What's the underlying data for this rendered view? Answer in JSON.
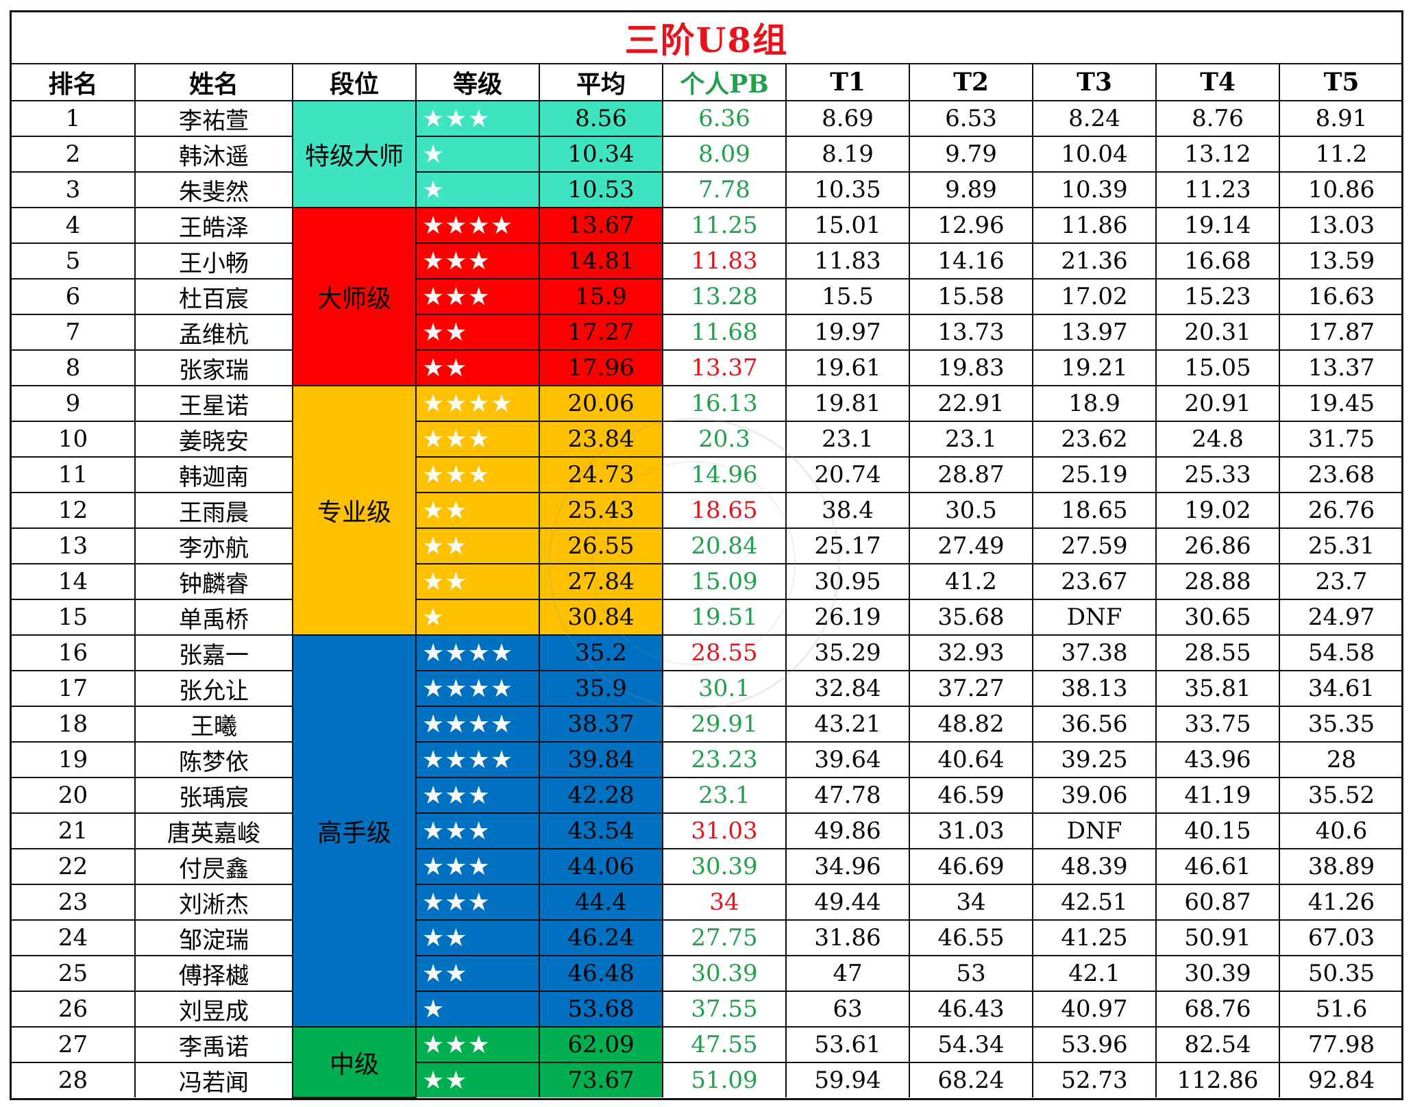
{
  "title": "三阶U8组",
  "headers": [
    "排名",
    "姓名",
    "段位",
    "等级",
    "平均",
    "个人PB",
    "T1",
    "T2",
    "T3",
    "T4",
    "T5"
  ],
  "tier_colors": {
    "特级大师": "#3ee3bf",
    "大师级": "#fe0000",
    "专业级": "#ffc000",
    "高手级": "#0070c0",
    "中级": "#00b050"
  },
  "pb_colors": {
    "green": "#1fa04a",
    "red": "#e8121b"
  },
  "tiers": [
    {
      "name": "特级大师",
      "start": 0,
      "span": 3
    },
    {
      "name": "大师级",
      "start": 3,
      "span": 5
    },
    {
      "name": "专业级",
      "start": 8,
      "span": 7
    },
    {
      "name": "高手级",
      "start": 15,
      "span": 11
    },
    {
      "name": "中级",
      "start": 26,
      "span": 2
    }
  ],
  "rows": [
    {
      "rank": "1",
      "name": "李祐萱",
      "tier": "特级大师",
      "level": "★★★",
      "avg": "8.56",
      "pb": "6.36",
      "pb_color": "green",
      "t": [
        "8.69",
        "6.53",
        "8.24",
        "8.76",
        "8.91"
      ]
    },
    {
      "rank": "2",
      "name": "韩沐遥",
      "tier": "特级大师",
      "level": "★",
      "avg": "10.34",
      "pb": "8.09",
      "pb_color": "green",
      "t": [
        "8.19",
        "9.79",
        "10.04",
        "13.12",
        "11.2"
      ]
    },
    {
      "rank": "3",
      "name": "朱斐然",
      "tier": "特级大师",
      "level": "★",
      "avg": "10.53",
      "pb": "7.78",
      "pb_color": "green",
      "t": [
        "10.35",
        "9.89",
        "10.39",
        "11.23",
        "10.86"
      ]
    },
    {
      "rank": "4",
      "name": "王皓泽",
      "tier": "大师级",
      "level": "★★★★",
      "avg": "13.67",
      "pb": "11.25",
      "pb_color": "green",
      "t": [
        "15.01",
        "12.96",
        "11.86",
        "19.14",
        "13.03"
      ]
    },
    {
      "rank": "5",
      "name": "王小畅",
      "tier": "大师级",
      "level": "★★★",
      "avg": "14.81",
      "pb": "11.83",
      "pb_color": "red",
      "t": [
        "11.83",
        "14.16",
        "21.36",
        "16.68",
        "13.59"
      ]
    },
    {
      "rank": "6",
      "name": "杜百宸",
      "tier": "大师级",
      "level": "★★★",
      "avg": "15.9",
      "pb": "13.28",
      "pb_color": "green",
      "t": [
        "15.5",
        "15.58",
        "17.02",
        "15.23",
        "16.63"
      ]
    },
    {
      "rank": "7",
      "name": "孟维杭",
      "tier": "大师级",
      "level": "★★",
      "avg": "17.27",
      "pb": "11.68",
      "pb_color": "green",
      "t": [
        "19.97",
        "13.73",
        "13.97",
        "20.31",
        "17.87"
      ]
    },
    {
      "rank": "8",
      "name": "张家瑞",
      "tier": "大师级",
      "level": "★★",
      "avg": "17.96",
      "pb": "13.37",
      "pb_color": "red",
      "t": [
        "19.61",
        "19.83",
        "19.21",
        "15.05",
        "13.37"
      ]
    },
    {
      "rank": "9",
      "name": "王星诺",
      "tier": "专业级",
      "level": "★★★★",
      "avg": "20.06",
      "pb": "16.13",
      "pb_color": "green",
      "t": [
        "19.81",
        "22.91",
        "18.9",
        "20.91",
        "19.45"
      ]
    },
    {
      "rank": "10",
      "name": "姜晓安",
      "tier": "专业级",
      "level": "★★★",
      "avg": "23.84",
      "pb": "20.3",
      "pb_color": "green",
      "t": [
        "23.1",
        "23.1",
        "23.62",
        "24.8",
        "31.75"
      ]
    },
    {
      "rank": "11",
      "name": "韩迦南",
      "tier": "专业级",
      "level": "★★★",
      "avg": "24.73",
      "pb": "14.96",
      "pb_color": "green",
      "t": [
        "20.74",
        "28.87",
        "25.19",
        "25.33",
        "23.68"
      ]
    },
    {
      "rank": "12",
      "name": "王雨晨",
      "tier": "专业级",
      "level": "★★",
      "avg": "25.43",
      "pb": "18.65",
      "pb_color": "red",
      "t": [
        "38.4",
        "30.5",
        "18.65",
        "19.02",
        "26.76"
      ]
    },
    {
      "rank": "13",
      "name": "李亦航",
      "tier": "专业级",
      "level": "★★",
      "avg": "26.55",
      "pb": "20.84",
      "pb_color": "green",
      "t": [
        "25.17",
        "27.49",
        "27.59",
        "26.86",
        "25.31"
      ]
    },
    {
      "rank": "14",
      "name": "钟麟睿",
      "tier": "专业级",
      "level": "★★",
      "avg": "27.84",
      "pb": "15.09",
      "pb_color": "green",
      "t": [
        "30.95",
        "41.2",
        "23.67",
        "28.88",
        "23.7"
      ]
    },
    {
      "rank": "15",
      "name": "单禹桥",
      "tier": "专业级",
      "level": "★",
      "avg": "30.84",
      "pb": "19.51",
      "pb_color": "green",
      "t": [
        "26.19",
        "35.68",
        "DNF",
        "30.65",
        "24.97"
      ]
    },
    {
      "rank": "16",
      "name": "张嘉一",
      "tier": "高手级",
      "level": "★★★★",
      "avg": "35.2",
      "pb": "28.55",
      "pb_color": "red",
      "t": [
        "35.29",
        "32.93",
        "37.38",
        "28.55",
        "54.58"
      ]
    },
    {
      "rank": "17",
      "name": "张允让",
      "tier": "高手级",
      "level": "★★★★",
      "avg": "35.9",
      "pb": "30.1",
      "pb_color": "green",
      "t": [
        "32.84",
        "37.27",
        "38.13",
        "35.81",
        "34.61"
      ]
    },
    {
      "rank": "18",
      "name": "王曦",
      "tier": "高手级",
      "level": "★★★★",
      "avg": "38.37",
      "pb": "29.91",
      "pb_color": "green",
      "t": [
        "43.21",
        "48.82",
        "36.56",
        "33.75",
        "35.35"
      ]
    },
    {
      "rank": "19",
      "name": "陈梦依",
      "tier": "高手级",
      "level": "★★★★",
      "avg": "39.84",
      "pb": "23.23",
      "pb_color": "green",
      "t": [
        "39.64",
        "40.64",
        "39.25",
        "43.96",
        "28"
      ]
    },
    {
      "rank": "20",
      "name": "张瑀宸",
      "tier": "高手级",
      "level": "★★★",
      "avg": "42.28",
      "pb": "23.1",
      "pb_color": "green",
      "t": [
        "47.78",
        "46.59",
        "39.06",
        "41.19",
        "35.52"
      ]
    },
    {
      "rank": "21",
      "name": "唐英嘉峻",
      "tier": "高手级",
      "level": "★★★",
      "avg": "43.54",
      "pb": "31.03",
      "pb_color": "red",
      "t": [
        "49.86",
        "31.03",
        "DNF",
        "40.15",
        "40.6"
      ]
    },
    {
      "rank": "22",
      "name": "付昃鑫",
      "tier": "高手级",
      "level": "★★★",
      "avg": "44.06",
      "pb": "30.39",
      "pb_color": "green",
      "t": [
        "34.96",
        "46.69",
        "48.39",
        "46.61",
        "38.89"
      ]
    },
    {
      "rank": "23",
      "name": "刘淅杰",
      "tier": "高手级",
      "level": "★★★",
      "avg": "44.4",
      "pb": "34",
      "pb_color": "red",
      "t": [
        "49.44",
        "34",
        "42.51",
        "60.87",
        "41.26"
      ]
    },
    {
      "rank": "24",
      "name": "邹淀瑞",
      "tier": "高手级",
      "level": "★★",
      "avg": "46.24",
      "pb": "27.75",
      "pb_color": "green",
      "t": [
        "31.86",
        "46.55",
        "41.25",
        "50.91",
        "67.03"
      ]
    },
    {
      "rank": "25",
      "name": "傅择樾",
      "tier": "高手级",
      "level": "★★",
      "avg": "46.48",
      "pb": "30.39",
      "pb_color": "green",
      "t": [
        "47",
        "53",
        "42.1",
        "30.39",
        "50.35"
      ]
    },
    {
      "rank": "26",
      "name": "刘昱成",
      "tier": "高手级",
      "level": "★",
      "avg": "53.68",
      "pb": "37.55",
      "pb_color": "green",
      "t": [
        "63",
        "46.43",
        "40.97",
        "68.76",
        "51.6"
      ]
    },
    {
      "rank": "27",
      "name": "李禹诺",
      "tier": "中级",
      "level": "★★★",
      "avg": "62.09",
      "pb": "47.55",
      "pb_color": "green",
      "t": [
        "53.61",
        "54.34",
        "53.96",
        "82.54",
        "77.98"
      ]
    },
    {
      "rank": "28",
      "name": "冯若闻",
      "tier": "中级",
      "level": "★★",
      "avg": "73.67",
      "pb": "51.09",
      "pb_color": "green",
      "t": [
        "59.94",
        "68.24",
        "52.73",
        "112.86",
        "92.84"
      ]
    }
  ]
}
